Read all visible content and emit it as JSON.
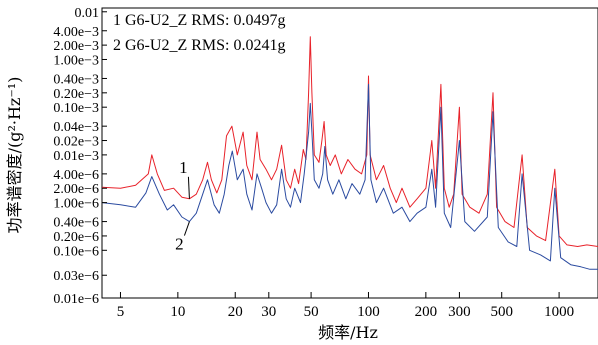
{
  "chart_data": {
    "type": "line",
    "title": "",
    "xlabel": "频率/Hz",
    "ylabel": "功率谱密度/(g²·Hz⁻¹)",
    "xscale": "log",
    "yscale": "log",
    "xlim": [
      4,
      1600
    ],
    "ylim": [
      1e-08,
      0.012
    ],
    "grid": false,
    "x_ticks": [
      {
        "v": 5,
        "label": "5"
      },
      {
        "v": 10,
        "label": "10"
      },
      {
        "v": 20,
        "label": "20"
      },
      {
        "v": 30,
        "label": "30"
      },
      {
        "v": 50,
        "label": "50"
      },
      {
        "v": 100,
        "label": "100"
      },
      {
        "v": 200,
        "label": "200"
      },
      {
        "v": 300,
        "label": "300"
      },
      {
        "v": 500,
        "label": "500"
      },
      {
        "v": 1000,
        "label": "1000"
      }
    ],
    "y_ticks": [
      {
        "v": 1e-08,
        "label": "0.01e−6"
      },
      {
        "v": 3e-08,
        "label": "0.03e−6"
      },
      {
        "v": 1e-07,
        "label": "0.10e−6"
      },
      {
        "v": 2e-07,
        "label": "0.20e−6"
      },
      {
        "v": 4e-07,
        "label": "0.40e−6"
      },
      {
        "v": 1e-06,
        "label": "1.00e−6"
      },
      {
        "v": 2e-06,
        "label": "2.00e−6"
      },
      {
        "v": 4e-06,
        "label": "4.00e−6"
      },
      {
        "v": 1e-05,
        "label": "0.01e−3"
      },
      {
        "v": 2e-05,
        "label": "0.02e−3"
      },
      {
        "v": 4e-05,
        "label": "0.04e−3"
      },
      {
        "v": 0.0001,
        "label": "0.10e−3"
      },
      {
        "v": 0.0002,
        "label": "0.20e−3"
      },
      {
        "v": 0.0004,
        "label": "0.40e−3"
      },
      {
        "v": 0.001,
        "label": "1.00e−3"
      },
      {
        "v": 0.002,
        "label": "2.00e−3"
      },
      {
        "v": 0.004,
        "label": "4.00e−3"
      },
      {
        "v": 0.01,
        "label": "0.01"
      }
    ],
    "legend": {
      "placement": "top-left",
      "entries": [
        "1 G6-U2_Z RMS: 0.0497g",
        "2 G6-U2_Z RMS: 0.0241g"
      ]
    },
    "annotations": [
      {
        "label": "1",
        "series": 0,
        "x": 11.5
      },
      {
        "label": "2",
        "series": 1,
        "x": 11.5
      }
    ],
    "series": [
      {
        "color": "#e8222a",
        "points": [
          [
            4,
            2.1e-06
          ],
          [
            5,
            2e-06
          ],
          [
            6,
            2.3e-06
          ],
          [
            7,
            4e-06
          ],
          [
            7.3,
            1e-05
          ],
          [
            7.8,
            4e-06
          ],
          [
            8.5,
            1.8e-06
          ],
          [
            9.5,
            2e-06
          ],
          [
            10.5,
            1.3e-06
          ],
          [
            11.5,
            1.2e-06
          ],
          [
            12.5,
            1.5e-06
          ],
          [
            13.5,
            3e-06
          ],
          [
            14.3,
            7e-06
          ],
          [
            15,
            3e-06
          ],
          [
            16,
            1.6e-06
          ],
          [
            17,
            3e-06
          ],
          [
            18,
            2.5e-05
          ],
          [
            19.2,
            4e-05
          ],
          [
            20.5,
            1e-05
          ],
          [
            22,
            3e-05
          ],
          [
            23,
            6e-06
          ],
          [
            24.5,
            3e-06
          ],
          [
            26,
            3e-05
          ],
          [
            27,
            8e-06
          ],
          [
            29,
            5e-06
          ],
          [
            31,
            3e-06
          ],
          [
            33,
            5e-06
          ],
          [
            35,
            1.6e-05
          ],
          [
            37,
            3e-06
          ],
          [
            39,
            2e-06
          ],
          [
            41,
            5e-06
          ],
          [
            43,
            2.5e-06
          ],
          [
            45.5,
            1.3e-05
          ],
          [
            47,
            8e-06
          ],
          [
            48.5,
            0.0002
          ],
          [
            49.5,
            0.003
          ],
          [
            50.5,
            0.0002
          ],
          [
            52,
            1e-05
          ],
          [
            55,
            7e-06
          ],
          [
            57,
            2e-05
          ],
          [
            58.5,
            5e-05
          ],
          [
            60,
            1e-05
          ],
          [
            63,
            6e-06
          ],
          [
            67,
            1e-05
          ],
          [
            72,
            4e-06
          ],
          [
            78,
            8e-06
          ],
          [
            85,
            5e-06
          ],
          [
            92,
            4e-06
          ],
          [
            98,
            1e-05
          ],
          [
            100,
            0.00045
          ],
          [
            102,
            1e-05
          ],
          [
            110,
            3e-06
          ],
          [
            120,
            6e-06
          ],
          [
            130,
            2e-06
          ],
          [
            140,
            1e-06
          ],
          [
            150,
            2e-06
          ],
          [
            165,
            8e-07
          ],
          [
            180,
            1.2e-06
          ],
          [
            200,
            2e-06
          ],
          [
            215,
            2e-05
          ],
          [
            225,
            2e-06
          ],
          [
            240,
            0.0003
          ],
          [
            250,
            2e-06
          ],
          [
            265,
            8e-07
          ],
          [
            280,
            1.5e-06
          ],
          [
            300,
            0.0001
          ],
          [
            310,
            1.5e-06
          ],
          [
            340,
            8e-07
          ],
          [
            380,
            6e-07
          ],
          [
            420,
            1.5e-06
          ],
          [
            450,
            0.0002
          ],
          [
            470,
            8e-07
          ],
          [
            520,
            4e-07
          ],
          [
            580,
            3e-07
          ],
          [
            640,
            1e-05
          ],
          [
            680,
            3e-07
          ],
          [
            760,
            2e-07
          ],
          [
            850,
            1.6e-07
          ],
          [
            950,
            5e-06
          ],
          [
            1000,
            2e-07
          ],
          [
            1100,
            1.3e-07
          ],
          [
            1250,
            1.2e-07
          ],
          [
            1400,
            1.3e-07
          ],
          [
            1600,
            1.2e-07
          ]
        ]
      },
      {
        "color": "#2b4ba0",
        "points": [
          [
            4,
            1e-06
          ],
          [
            5,
            9e-07
          ],
          [
            6,
            8e-07
          ],
          [
            6.8,
            1.6e-06
          ],
          [
            7.3,
            3.5e-06
          ],
          [
            8,
            1.5e-06
          ],
          [
            8.8,
            7e-07
          ],
          [
            9.5,
            9e-07
          ],
          [
            10.5,
            5e-07
          ],
          [
            11.5,
            4e-07
          ],
          [
            12.5,
            6e-07
          ],
          [
            13.5,
            1.5e-06
          ],
          [
            14.3,
            3e-06
          ],
          [
            15.5,
            9e-07
          ],
          [
            16.5,
            6e-07
          ],
          [
            17.5,
            1.5e-06
          ],
          [
            18.5,
            6e-06
          ],
          [
            19.3,
            1.2e-05
          ],
          [
            20.5,
            3e-06
          ],
          [
            22,
            5e-06
          ],
          [
            23,
            1.5e-06
          ],
          [
            24.5,
            7e-07
          ],
          [
            26,
            4e-06
          ],
          [
            27.5,
            2e-06
          ],
          [
            29,
            1e-06
          ],
          [
            31,
            6e-07
          ],
          [
            33,
            9e-07
          ],
          [
            35,
            5e-06
          ],
          [
            37,
            1.2e-06
          ],
          [
            39,
            8e-07
          ],
          [
            41,
            2e-06
          ],
          [
            44,
            1e-06
          ],
          [
            46,
            4e-06
          ],
          [
            48.5,
            3e-05
          ],
          [
            49.5,
            0.00012
          ],
          [
            50.5,
            3e-05
          ],
          [
            52,
            3e-06
          ],
          [
            55,
            2e-06
          ],
          [
            57.5,
            4e-06
          ],
          [
            59,
            1.5e-05
          ],
          [
            61,
            3e-06
          ],
          [
            65,
            1.5e-06
          ],
          [
            70,
            3e-06
          ],
          [
            76,
            1.2e-06
          ],
          [
            82,
            2.5e-06
          ],
          [
            90,
            1.5e-06
          ],
          [
            96,
            3e-06
          ],
          [
            100,
            0.0003
          ],
          [
            103,
            3e-06
          ],
          [
            110,
            1e-06
          ],
          [
            120,
            2e-06
          ],
          [
            135,
            6e-07
          ],
          [
            150,
            8e-07
          ],
          [
            165,
            4e-07
          ],
          [
            180,
            6e-07
          ],
          [
            200,
            8e-07
          ],
          [
            215,
            5e-06
          ],
          [
            225,
            8e-07
          ],
          [
            240,
            0.0001
          ],
          [
            250,
            6e-07
          ],
          [
            270,
            3e-07
          ],
          [
            300,
            2e-05
          ],
          [
            320,
            4e-07
          ],
          [
            360,
            2.5e-07
          ],
          [
            420,
            5e-07
          ],
          [
            450,
            8e-05
          ],
          [
            480,
            3e-07
          ],
          [
            540,
            1.5e-07
          ],
          [
            600,
            1.2e-07
          ],
          [
            640,
            4e-06
          ],
          [
            700,
            1e-07
          ],
          [
            800,
            8e-08
          ],
          [
            900,
            6e-08
          ],
          [
            950,
            2e-06
          ],
          [
            1020,
            7e-08
          ],
          [
            1150,
            5e-08
          ],
          [
            1300,
            4.5e-08
          ],
          [
            1450,
            4e-08
          ],
          [
            1600,
            4e-08
          ]
        ]
      }
    ]
  }
}
